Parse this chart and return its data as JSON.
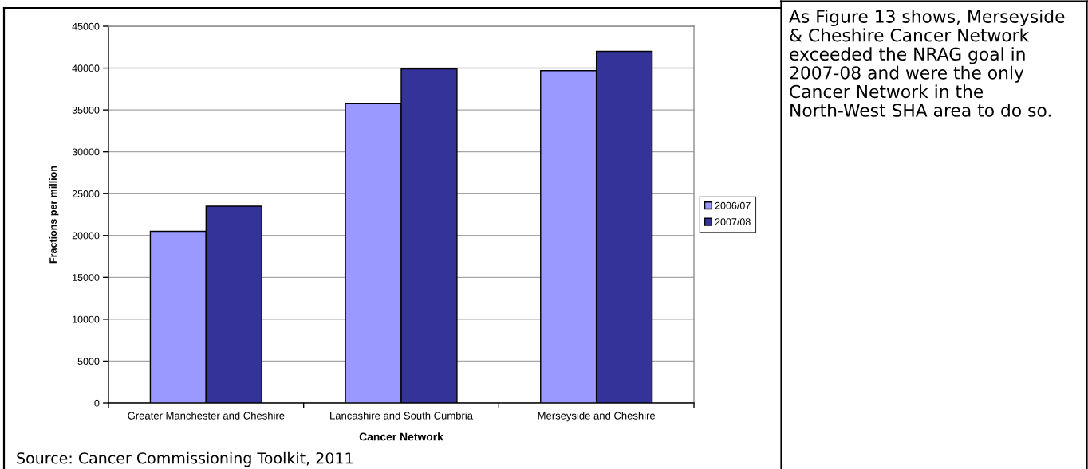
{
  "chart_data": {
    "type": "bar",
    "categories": [
      "Greater Manchester and Cheshire",
      "Lancashire and South Cumbria",
      "Merseyside and Cheshire"
    ],
    "series": [
      {
        "name": "2006/07",
        "color": "#9999ff",
        "values": [
          20500,
          35800,
          39700
        ]
      },
      {
        "name": "2007/08",
        "color": "#333399",
        "values": [
          23500,
          39900,
          42000
        ]
      }
    ],
    "xlabel": "Cancer Network",
    "ylabel": "Fractions per million",
    "ylim": [
      0,
      45000
    ],
    "yticks": [
      0,
      5000,
      10000,
      15000,
      20000,
      25000,
      30000,
      35000,
      40000,
      45000
    ],
    "grid": "y",
    "legend": "right",
    "annotations": [
      "As Figure 13 shows, Merseyside & Cheshire Cancer Network exceeded the NRAG goal in 2007-08 and were the only Cancer Network in the North-West SHA area to do so.",
      "Source: Cancer Commissioning Toolkit, 2011"
    ]
  }
}
